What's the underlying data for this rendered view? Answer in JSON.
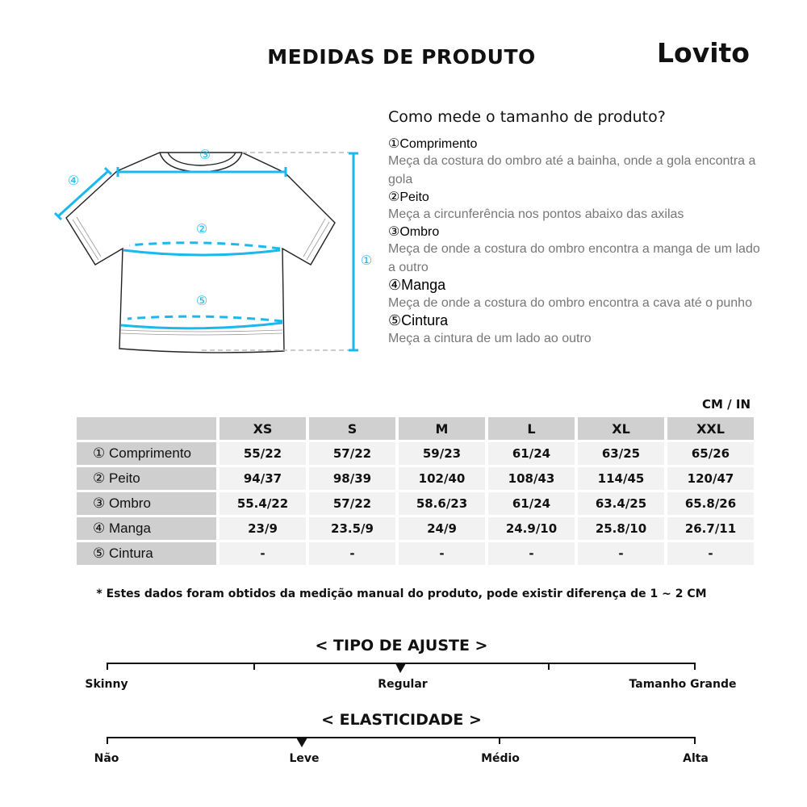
{
  "header": {
    "title": "MEDIDAS DE PRODUTO",
    "logo": "Lovito"
  },
  "diagram": {
    "labels": [
      "①",
      "②",
      "③",
      "④",
      "⑤"
    ],
    "accent": "#1ab8ec"
  },
  "guide": {
    "heading": "Como mede o tamanho de produto?",
    "items": [
      {
        "title": "①Comprimento",
        "desc": "Meça da costura do ombro até a bainha, onde a gola encontra a gola"
      },
      {
        "title": "②Peito",
        "desc": "Meça a circunferência nos pontos abaixo das axilas"
      },
      {
        "title": "③Ombro",
        "desc": "Meça de onde a costura do ombro encontra a manga de um lado a outro"
      },
      {
        "title": "④Manga",
        "desc": "Meça de onde a costura do ombro encontra a cava até o punho"
      },
      {
        "title": "⑤Cintura",
        "desc": "Meça a cintura de um lado ao outro"
      }
    ]
  },
  "table": {
    "unit": "CM / IN",
    "sizes": [
      "XS",
      "S",
      "M",
      "L",
      "XL",
      "XXL"
    ],
    "rows": [
      {
        "label": "① Comprimento",
        "values": [
          "55/22",
          "57/22",
          "59/23",
          "61/24",
          "63/25",
          "65/26"
        ]
      },
      {
        "label": "② Peito",
        "values": [
          "94/37",
          "98/39",
          "102/40",
          "108/43",
          "114/45",
          "120/47"
        ]
      },
      {
        "label": "③ Ombro",
        "values": [
          "55.4/22",
          "57/22",
          "58.6/23",
          "61/24",
          "63.4/25",
          "65.8/26"
        ]
      },
      {
        "label": "④ Manga",
        "values": [
          "23/9",
          "23.5/9",
          "24/9",
          "24.9/10",
          "25.8/10",
          "26.7/11"
        ]
      },
      {
        "label": "⑤ Cintura",
        "values": [
          "-",
          "-",
          "-",
          "-",
          "-",
          "-"
        ]
      }
    ],
    "note": "* Estes dados foram obtidos da medição manual do produto, pode existir diferença de 1 ~ 2 CM"
  },
  "fit": {
    "title": "< TIPO DE AJUSTE >",
    "labels": [
      "Skinny",
      "Regular",
      "Tamanho Grande"
    ],
    "selected": "Regular"
  },
  "elasticity": {
    "title": "< ELASTICIDADE >",
    "labels": [
      "Não",
      "Leve",
      "Médio",
      "Alta"
    ],
    "selected": "Leve"
  }
}
